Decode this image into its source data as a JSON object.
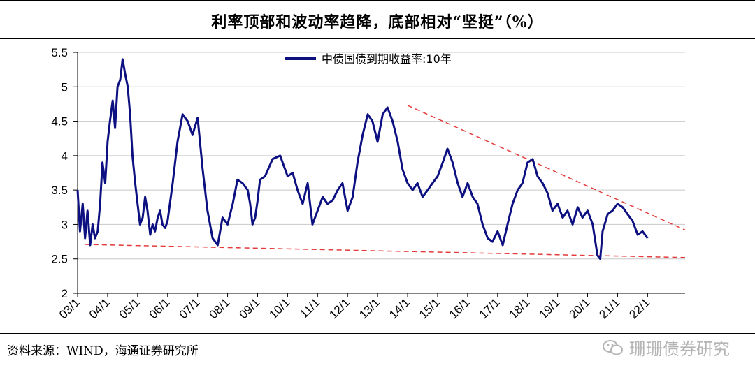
{
  "title": "利率顶部和波动率趋降，底部相对“坚挺”（%）",
  "source": "资料来源：WIND，海通证券研究所",
  "watermark": "珊珊债券研究",
  "colors": {
    "series": "#0d1080",
    "trend": "#e33b3b",
    "grid": "#c8c8c8",
    "axis": "#000000"
  },
  "chart_data": {
    "type": "line",
    "title": "利率顶部和波动率趋降，底部相对“坚挺”（%）",
    "xlabel": "",
    "ylabel": "",
    "xlim": [
      2003.0,
      2023.25
    ],
    "ylim": [
      2,
      5.5
    ],
    "yticks": [
      2,
      2.5,
      3,
      3.5,
      4,
      4.5,
      5,
      5.5
    ],
    "ytick_labels": [
      "2",
      "2.5",
      "3",
      "3.5",
      "4",
      "4.5",
      "5",
      "5.5"
    ],
    "xticks": [
      2003,
      2004,
      2005,
      2006,
      2007,
      2008,
      2009,
      2010,
      2011,
      2012,
      2013,
      2014,
      2015,
      2016,
      2017,
      2018,
      2019,
      2020,
      2021,
      2022
    ],
    "xtick_labels": [
      "03/1",
      "04/1",
      "05/1",
      "06/1",
      "07/1",
      "08/1",
      "09/1",
      "10/1",
      "11/1",
      "12/1",
      "13/1",
      "14/1",
      "15/1",
      "16/1",
      "17/1",
      "18/1",
      "19/1",
      "20/1",
      "21/1",
      "22/1"
    ],
    "grid": true,
    "legend": "top-center",
    "series": [
      {
        "name": "中债国债到期收益率:10年",
        "x": [
          2003.0,
          2003.08,
          2003.17,
          2003.25,
          2003.33,
          2003.42,
          2003.5,
          2003.58,
          2003.67,
          2003.75,
          2003.83,
          2003.92,
          2004.0,
          2004.08,
          2004.17,
          2004.25,
          2004.33,
          2004.42,
          2004.5,
          2004.58,
          2004.67,
          2004.75,
          2004.83,
          2004.92,
          2005.0,
          2005.08,
          2005.17,
          2005.25,
          2005.33,
          2005.42,
          2005.5,
          2005.58,
          2005.67,
          2005.75,
          2005.83,
          2005.92,
          2006.0,
          2006.17,
          2006.33,
          2006.5,
          2006.67,
          2006.83,
          2007.0,
          2007.17,
          2007.33,
          2007.5,
          2007.67,
          2007.83,
          2008.0,
          2008.17,
          2008.33,
          2008.5,
          2008.67,
          2008.75,
          2008.83,
          2008.92,
          2009.0,
          2009.08,
          2009.25,
          2009.5,
          2009.75,
          2010.0,
          2010.17,
          2010.33,
          2010.5,
          2010.67,
          2010.83,
          2011.0,
          2011.17,
          2011.33,
          2011.5,
          2011.67,
          2011.83,
          2012.0,
          2012.17,
          2012.33,
          2012.5,
          2012.67,
          2012.83,
          2013.0,
          2013.17,
          2013.33,
          2013.5,
          2013.67,
          2013.83,
          2014.0,
          2014.17,
          2014.33,
          2014.5,
          2014.67,
          2014.83,
          2015.0,
          2015.17,
          2015.33,
          2015.5,
          2015.67,
          2015.83,
          2016.0,
          2016.17,
          2016.33,
          2016.5,
          2016.67,
          2016.83,
          2017.0,
          2017.17,
          2017.33,
          2017.5,
          2017.67,
          2017.83,
          2018.0,
          2018.17,
          2018.33,
          2018.5,
          2018.67,
          2018.83,
          2019.0,
          2019.17,
          2019.33,
          2019.5,
          2019.67,
          2019.83,
          2020.0,
          2020.17,
          2020.33,
          2020.42,
          2020.5,
          2020.67,
          2020.83,
          2021.0,
          2021.17,
          2021.33,
          2021.5,
          2021.67,
          2021.83,
          2022.0
        ],
        "values": [
          3.5,
          2.9,
          3.3,
          2.8,
          3.2,
          2.7,
          3.0,
          2.8,
          2.9,
          3.3,
          3.9,
          3.6,
          4.2,
          4.5,
          4.8,
          4.4,
          5.0,
          5.1,
          5.4,
          5.2,
          5.0,
          4.6,
          4.0,
          3.6,
          3.3,
          3.0,
          3.1,
          3.4,
          3.2,
          2.85,
          3.0,
          2.9,
          3.1,
          3.2,
          3.0,
          2.95,
          3.05,
          3.6,
          4.2,
          4.6,
          4.5,
          4.3,
          4.55,
          3.8,
          3.2,
          2.8,
          2.7,
          3.1,
          3.0,
          3.3,
          3.65,
          3.6,
          3.5,
          3.3,
          3.0,
          3.1,
          3.35,
          3.65,
          3.7,
          3.95,
          4.0,
          3.7,
          3.75,
          3.5,
          3.3,
          3.6,
          3.0,
          3.2,
          3.4,
          3.3,
          3.35,
          3.5,
          3.6,
          3.2,
          3.4,
          3.9,
          4.3,
          4.6,
          4.5,
          4.2,
          4.6,
          4.7,
          4.5,
          4.2,
          3.8,
          3.6,
          3.5,
          3.6,
          3.4,
          3.5,
          3.6,
          3.7,
          3.9,
          4.1,
          3.9,
          3.6,
          3.4,
          3.6,
          3.4,
          3.3,
          3.0,
          2.8,
          2.75,
          2.9,
          2.7,
          3.0,
          3.3,
          3.5,
          3.6,
          3.9,
          3.95,
          3.7,
          3.6,
          3.45,
          3.2,
          3.3,
          3.1,
          3.2,
          3.0,
          3.25,
          3.1,
          3.2,
          3.0,
          2.55,
          2.5,
          2.9,
          3.15,
          3.2,
          3.3,
          3.25,
          3.15,
          3.05,
          2.85,
          2.9,
          2.8
        ]
      }
    ],
    "trendlines": [
      {
        "name": "upper-trend",
        "x": [
          2014.0,
          2023.25
        ],
        "values": [
          4.73,
          2.92
        ]
      },
      {
        "name": "lower-trend",
        "x": [
          2003.25,
          2023.25
        ],
        "values": [
          2.71,
          2.52
        ]
      }
    ]
  }
}
